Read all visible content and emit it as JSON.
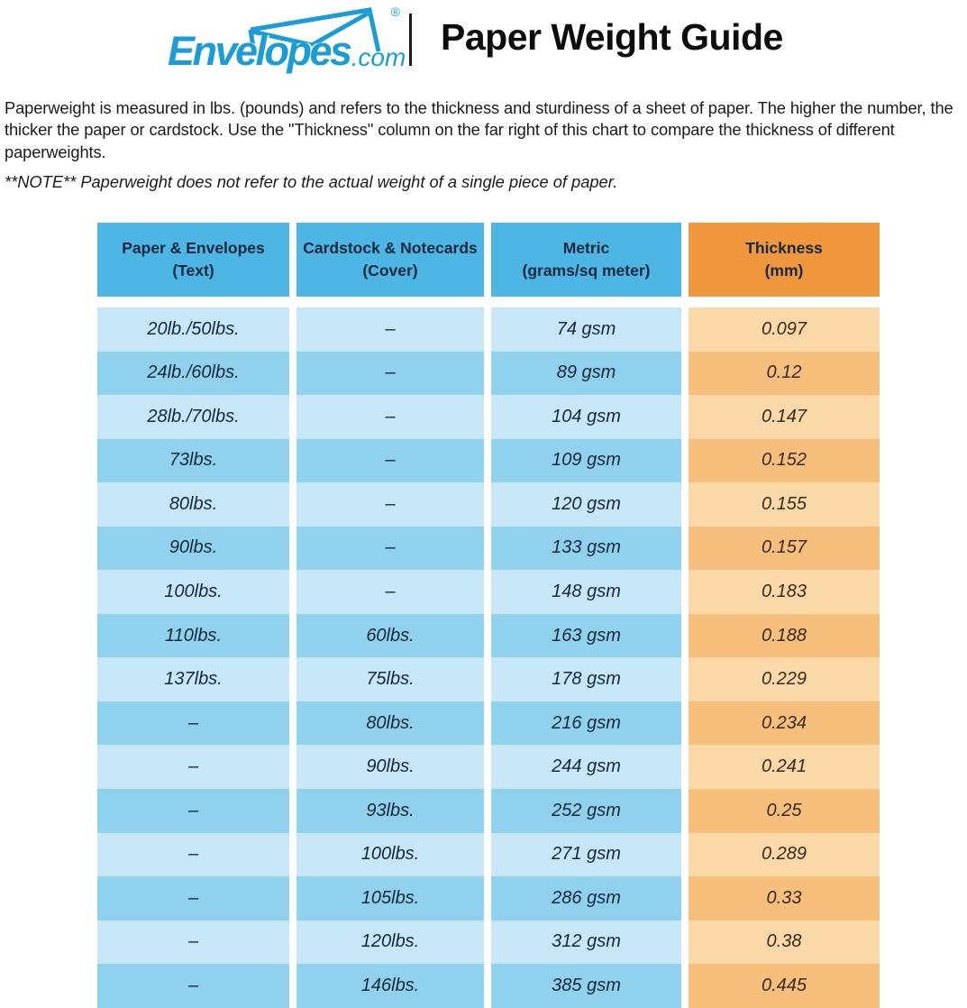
{
  "header": {
    "brand": "Envelopes",
    "brand_suffix": ".com",
    "registered_mark": "®",
    "title": "Paper Weight Guide"
  },
  "intro": {
    "paragraph": "Paperweight is measured in lbs. (pounds) and refers to the thickness and sturdiness of a sheet of paper. The higher the number, the thicker the paper or cardstock. Use the \"Thickness\" column on the far right of this chart to compare the thickness of different paperweights.",
    "note": "**NOTE** Paperweight does not refer to the actual weight of a single piece of paper."
  },
  "table": {
    "columns": [
      {
        "title": "Paper & Envelopes",
        "subtitle": "(Text)"
      },
      {
        "title": "Cardstock & Notecards",
        "subtitle": "(Cover)"
      },
      {
        "title": "Metric",
        "subtitle": "(grams/sq meter)"
      },
      {
        "title": "Thickness",
        "subtitle": "(mm)"
      }
    ],
    "rows": [
      [
        "20lb./50lbs.",
        "–",
        "74 gsm",
        "0.097"
      ],
      [
        "24lb./60lbs.",
        "–",
        "89 gsm",
        "0.12"
      ],
      [
        "28lb./70lbs.",
        "–",
        "104 gsm",
        "0.147"
      ],
      [
        "73lbs.",
        "–",
        "109 gsm",
        "0.152"
      ],
      [
        "80lbs.",
        "–",
        "120 gsm",
        "0.155"
      ],
      [
        "90lbs.",
        "–",
        "133 gsm",
        "0.157"
      ],
      [
        "100lbs.",
        "–",
        "148 gsm",
        "0.183"
      ],
      [
        "110lbs.",
        "60lbs.",
        "163 gsm",
        "0.188"
      ],
      [
        "137lbs.",
        "75lbs.",
        "178 gsm",
        "0.229"
      ],
      [
        "–",
        "80lbs.",
        "216 gsm",
        "0.234"
      ],
      [
        "–",
        "90lbs.",
        "244 gsm",
        "0.241"
      ],
      [
        "–",
        "93lbs.",
        "252 gsm",
        "0.25"
      ],
      [
        "–",
        "100lbs.",
        "271 gsm",
        "0.289"
      ],
      [
        "–",
        "105lbs.",
        "286 gsm",
        "0.33"
      ],
      [
        "–",
        "120lbs.",
        "312 gsm",
        "0.38"
      ],
      [
        "–",
        "146lbs.",
        "385 gsm",
        "0.445"
      ]
    ]
  },
  "colors": {
    "brand_blue": "#1B9CD8",
    "header_blue": "#4DB6E4",
    "header_orange": "#F0963C",
    "row_blue_light": "#C7E7F7",
    "row_blue_dark": "#90D1EE",
    "row_orange_light": "#FAD8A8",
    "row_orange_dark": "#F6BF7B",
    "text_navy": "#16283C",
    "thickness_text": "#3A2A1C"
  }
}
